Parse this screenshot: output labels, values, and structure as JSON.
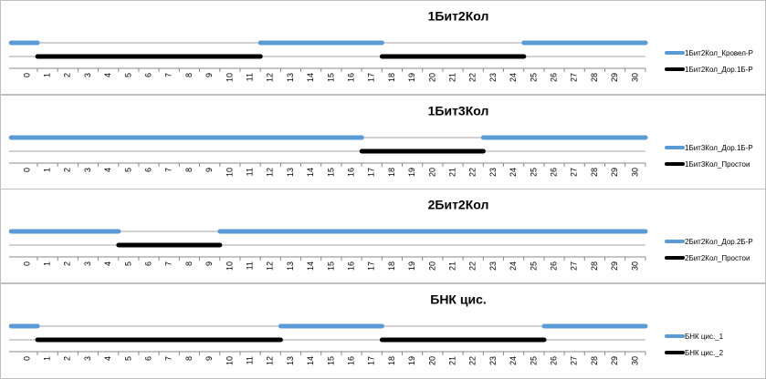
{
  "chart_data": [
    {
      "type": "gantt",
      "title": "1Бит2Кол",
      "xlim": [
        -0.9,
        30.5
      ],
      "xticks": [
        0,
        1,
        2,
        3,
        4,
        5,
        6,
        7,
        8,
        9,
        10,
        11,
        12,
        13,
        14,
        15,
        16,
        17,
        18,
        19,
        20,
        21,
        22,
        23,
        24,
        25,
        26,
        27,
        28,
        29,
        30
      ],
      "series": [
        {
          "name": "1Бит2Кол_Кровел-Р",
          "color": "#5b9bd5",
          "values": [
            [
              -0.8,
              0.5
            ],
            [
              11.5,
              17.5
            ],
            [
              24.5,
              30.5
            ]
          ]
        },
        {
          "name": "1Бит2Кол_Дор.1Б-Р",
          "color": "#000000",
          "values": [
            [
              0.5,
              11.5
            ],
            [
              17.5,
              24.5
            ]
          ]
        }
      ]
    },
    {
      "type": "gantt",
      "title": "1Бит3Кол",
      "xlim": [
        -0.9,
        30.5
      ],
      "xticks": [
        0,
        1,
        2,
        3,
        4,
        5,
        6,
        7,
        8,
        9,
        10,
        11,
        12,
        13,
        14,
        15,
        16,
        17,
        18,
        19,
        20,
        21,
        22,
        23,
        24,
        25,
        26,
        27,
        28,
        29,
        30
      ],
      "series": [
        {
          "name": "1Бит3Кол_Дор.1Б-Р",
          "color": "#5b9bd5",
          "values": [
            [
              -0.8,
              16.5
            ],
            [
              22.5,
              30.5
            ]
          ]
        },
        {
          "name": "1Бит3Кол_Простои",
          "color": "#000000",
          "values": [
            [
              16.5,
              22.5
            ]
          ]
        }
      ]
    },
    {
      "type": "gantt",
      "title": "2Бит2Кол",
      "xlim": [
        -0.9,
        30.5
      ],
      "xticks": [
        0,
        1,
        2,
        3,
        4,
        5,
        6,
        7,
        8,
        9,
        10,
        11,
        12,
        13,
        14,
        15,
        16,
        17,
        18,
        19,
        20,
        21,
        22,
        23,
        24,
        25,
        26,
        27,
        28,
        29,
        30
      ],
      "series": [
        {
          "name": "2Бит2Кол_Дор.2Б-Р",
          "color": "#5b9bd5",
          "values": [
            [
              -0.8,
              4.5
            ],
            [
              9.5,
              30.5
            ]
          ]
        },
        {
          "name": "2Бит2Кол_Простои",
          "color": "#000000",
          "values": [
            [
              4.5,
              9.5
            ]
          ]
        }
      ]
    },
    {
      "type": "gantt",
      "title": "БНК цис.",
      "xlim": [
        -0.9,
        30.5
      ],
      "xticks": [
        0,
        1,
        2,
        3,
        4,
        5,
        6,
        7,
        8,
        9,
        10,
        11,
        12,
        13,
        14,
        15,
        16,
        17,
        18,
        19,
        20,
        21,
        22,
        23,
        24,
        25,
        26,
        27,
        28,
        29,
        30
      ],
      "series": [
        {
          "name": "БНК цис._1",
          "color": "#5b9bd5",
          "values": [
            [
              -0.8,
              0.5
            ],
            [
              12.5,
              17.5
            ],
            [
              25.5,
              30.5
            ]
          ]
        },
        {
          "name": "БНК цис._2",
          "color": "#000000",
          "values": [
            [
              0.5,
              12.5
            ],
            [
              17.5,
              25.5
            ]
          ]
        }
      ]
    }
  ]
}
